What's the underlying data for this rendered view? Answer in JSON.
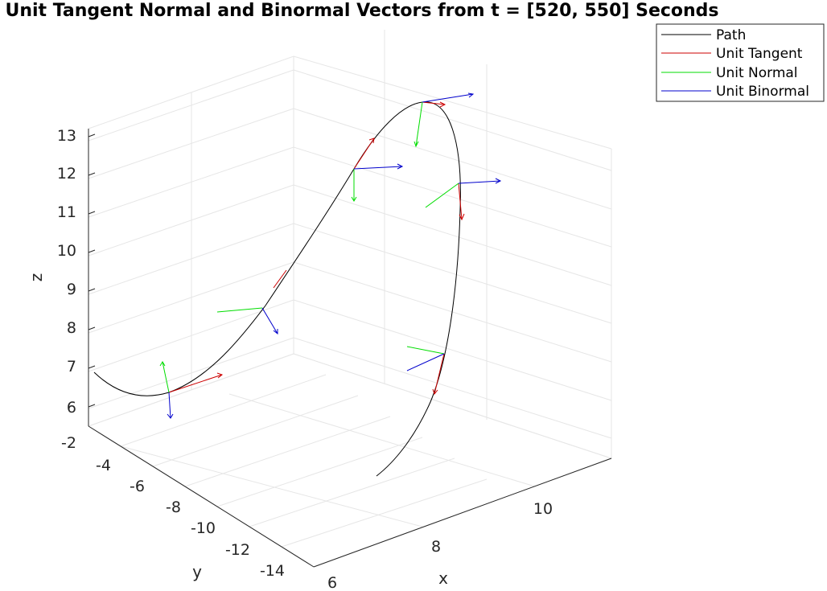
{
  "chart_data": {
    "type": "line",
    "projection": "3d",
    "title": "Unit Tangent Normal and Binormal Vectors from t = [520, 550] Seconds",
    "xlabel": "x",
    "ylabel": "y",
    "zlabel": "z",
    "x_ticks": [
      "6",
      "8",
      "10"
    ],
    "y_ticks": [
      "-2",
      "-4",
      "-6",
      "-8",
      "-10",
      "-12",
      "-14"
    ],
    "z_ticks": [
      "6",
      "7",
      "8",
      "9",
      "10",
      "11",
      "12",
      "13"
    ],
    "grid": true,
    "legend_position": "top-right",
    "legend": [
      {
        "label": "Path",
        "color": "#000000"
      },
      {
        "label": "Unit Tangent",
        "color": "#cc0000"
      },
      {
        "label": "Unit Normal",
        "color": "#00dd00"
      },
      {
        "label": "Unit Binormal",
        "color": "#0000cc"
      }
    ]
  }
}
